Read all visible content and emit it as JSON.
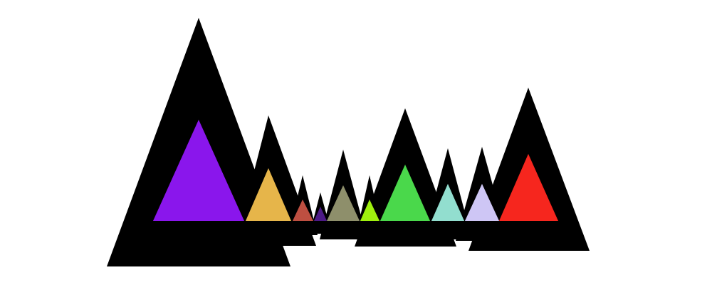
{
  "triangles": [
    {
      "id": "purple",
      "color": "#8a16ec"
    },
    {
      "id": "gold",
      "color": "#e6b54a"
    },
    {
      "id": "rust",
      "color": "#be4f41"
    },
    {
      "id": "indigo",
      "color": "#4d1a87"
    },
    {
      "id": "olive-gray",
      "color": "#8e8f6b"
    },
    {
      "id": "lime",
      "color": "#9ff00e"
    },
    {
      "id": "green",
      "color": "#4ad84b"
    },
    {
      "id": "mint",
      "color": "#92decf"
    },
    {
      "id": "lavender",
      "color": "#cec6f5"
    },
    {
      "id": "red",
      "color": "#f6261e"
    }
  ],
  "colors": {
    "background": "#ffffff",
    "outline": "#000000"
  }
}
